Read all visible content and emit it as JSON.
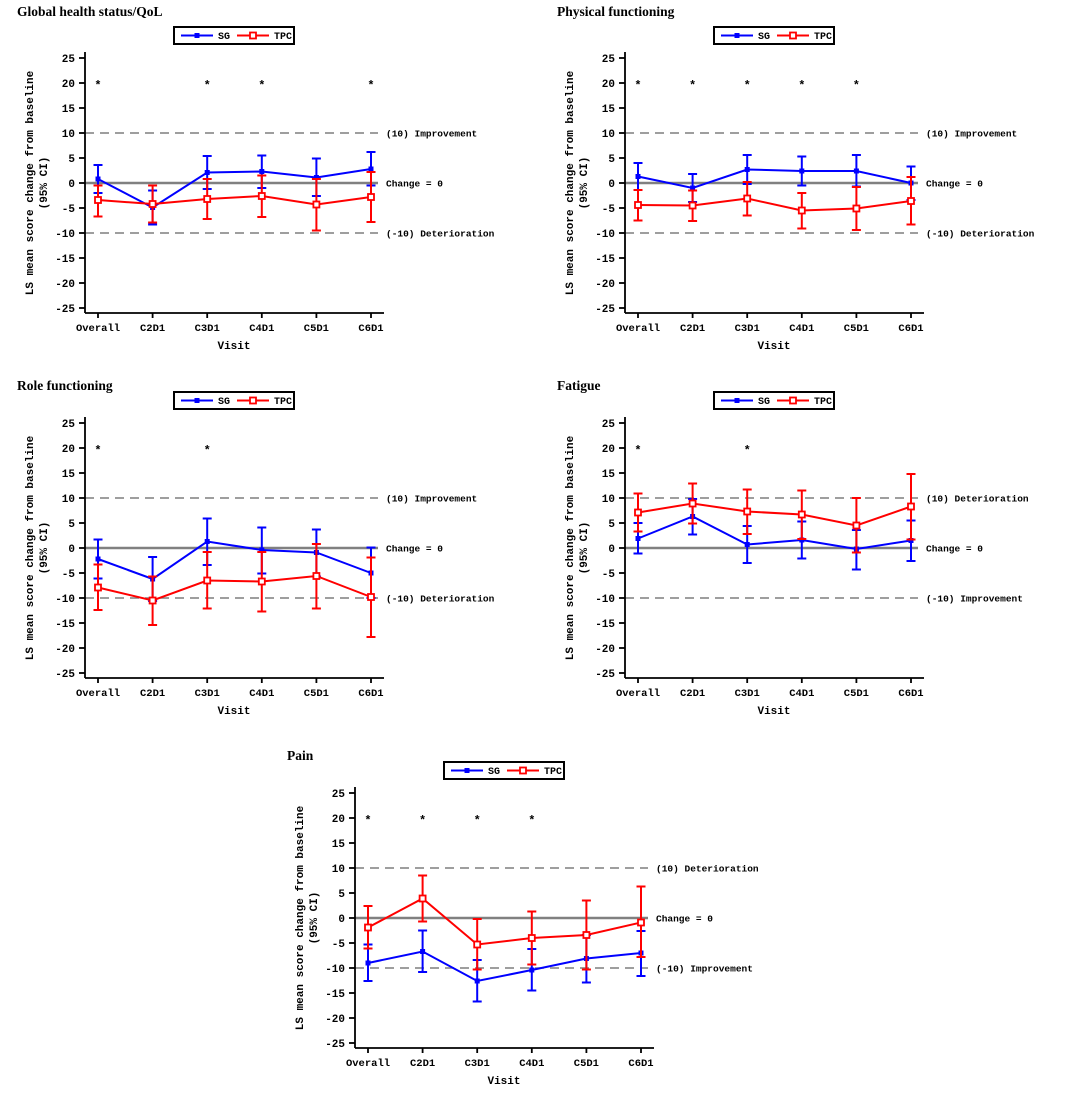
{
  "significance_marker": "*",
  "axes": {
    "ylabel_line1": "LS mean score change from baseline",
    "ylabel_line2": "(95% CI)",
    "xlabel": "Visit",
    "ylim": [
      -25,
      25
    ],
    "yticks": [
      25,
      20,
      15,
      10,
      5,
      0,
      -5,
      -10,
      -15,
      -20,
      -25
    ],
    "categories": [
      "Overall",
      "C2D1",
      "C3D1",
      "C4D1",
      "C5D1",
      "C6D1"
    ],
    "legend_position": "top-center",
    "grid": false
  },
  "colors": {
    "sg": "#0000FF",
    "tpc": "#FF0000",
    "zero_line": "#808080",
    "reference_line": "#7F7F7F",
    "text": "#000000",
    "background": "#FFFFFF"
  },
  "chart_data": [
    {
      "type": "line",
      "title": "Global health status/QoL",
      "xlabel": "Visit",
      "ylabel": "LS mean score change from baseline (95% CI)",
      "ylim": [
        -25,
        25
      ],
      "yticks": [
        25,
        20,
        15,
        10,
        5,
        0,
        -5,
        -10,
        -15,
        -20,
        -25
      ],
      "categories": [
        "Overall",
        "C2D1",
        "C3D1",
        "C4D1",
        "C5D1",
        "C6D1"
      ],
      "reference_lines": [
        {
          "value": 10,
          "style": "dashed",
          "label": "(10) Improvement"
        },
        {
          "value": 0,
          "style": "solid",
          "label": "Change = 0"
        },
        {
          "value": -10,
          "style": "dashed",
          "label": "(-10) Deterioration"
        }
      ],
      "asterisk_y": 20,
      "asterisk_categories": [
        "Overall",
        "C3D1",
        "C4D1",
        "C6D1"
      ],
      "series": [
        {
          "name": "SG",
          "color": "#0000FF",
          "marker": "filled-square",
          "values": [
            0.8,
            -4.9,
            2.1,
            2.3,
            1.1,
            2.8
          ],
          "ci_low": [
            -2.0,
            -8.3,
            -1.2,
            -1.0,
            -2.6,
            -0.5
          ],
          "ci_high": [
            3.6,
            -1.5,
            5.4,
            5.5,
            4.9,
            6.2
          ]
        },
        {
          "name": "TPC",
          "color": "#FF0000",
          "marker": "open-square",
          "values": [
            -3.4,
            -4.2,
            -3.2,
            -2.6,
            -4.3,
            -2.8
          ],
          "ci_low": [
            -6.7,
            -7.9,
            -7.2,
            -6.8,
            -9.5,
            -7.8
          ],
          "ci_high": [
            -0.5,
            -0.5,
            0.8,
            1.5,
            0.8,
            2.2
          ]
        }
      ]
    },
    {
      "type": "line",
      "title": "Physical functioning",
      "xlabel": "Visit",
      "ylabel": "LS mean score change from baseline (95% CI)",
      "ylim": [
        -25,
        25
      ],
      "yticks": [
        25,
        20,
        15,
        10,
        5,
        0,
        -5,
        -10,
        -15,
        -20,
        -25
      ],
      "categories": [
        "Overall",
        "C2D1",
        "C3D1",
        "C4D1",
        "C5D1",
        "C6D1"
      ],
      "reference_lines": [
        {
          "value": 10,
          "style": "dashed",
          "label": "(10) Improvement"
        },
        {
          "value": 0,
          "style": "solid",
          "label": "Change = 0"
        },
        {
          "value": -10,
          "style": "dashed",
          "label": "(-10) Deterioration"
        }
      ],
      "asterisk_y": 20,
      "asterisk_categories": [
        "Overall",
        "C2D1",
        "C3D1",
        "C4D1",
        "C5D1"
      ],
      "series": [
        {
          "name": "SG",
          "color": "#0000FF",
          "marker": "filled-square",
          "values": [
            1.3,
            -1.0,
            2.7,
            2.4,
            2.4,
            0.0
          ],
          "ci_low": [
            -1.4,
            -3.8,
            -0.2,
            -0.5,
            -0.7,
            -3.4
          ],
          "ci_high": [
            4.0,
            1.8,
            5.6,
            5.3,
            5.6,
            3.3
          ]
        },
        {
          "name": "TPC",
          "color": "#FF0000",
          "marker": "open-square",
          "values": [
            -4.4,
            -4.5,
            -3.1,
            -5.5,
            -5.1,
            -3.6
          ],
          "ci_low": [
            -7.5,
            -7.6,
            -6.5,
            -9.1,
            -9.4,
            -8.3
          ],
          "ci_high": [
            -1.4,
            -1.5,
            0.2,
            -2.0,
            -0.8,
            1.2
          ]
        }
      ]
    },
    {
      "type": "line",
      "title": "Role functioning",
      "xlabel": "Visit",
      "ylabel": "LS mean score change from baseline (95% CI)",
      "ylim": [
        -25,
        25
      ],
      "yticks": [
        25,
        20,
        15,
        10,
        5,
        0,
        -5,
        -10,
        -15,
        -20,
        -25
      ],
      "categories": [
        "Overall",
        "C2D1",
        "C3D1",
        "C4D1",
        "C5D1",
        "C6D1"
      ],
      "reference_lines": [
        {
          "value": 10,
          "style": "dashed",
          "label": "(10) Improvement"
        },
        {
          "value": 0,
          "style": "solid",
          "label": "Change = 0"
        },
        {
          "value": -10,
          "style": "dashed",
          "label": "(-10) Deterioration"
        }
      ],
      "asterisk_y": 20,
      "asterisk_categories": [
        "Overall",
        "C3D1"
      ],
      "series": [
        {
          "name": "SG",
          "color": "#0000FF",
          "marker": "filled-square",
          "values": [
            -2.2,
            -6.2,
            1.3,
            -0.4,
            -0.9,
            -5.0
          ],
          "ci_low": [
            -6.1,
            -10.6,
            -3.4,
            -5.1,
            -5.7,
            -10.0
          ],
          "ci_high": [
            1.7,
            -1.8,
            5.9,
            4.1,
            3.7,
            0.1
          ]
        },
        {
          "name": "TPC",
          "color": "#FF0000",
          "marker": "open-square",
          "values": [
            -7.9,
            -10.5,
            -6.5,
            -6.7,
            -5.6,
            -9.8
          ],
          "ci_low": [
            -12.4,
            -15.4,
            -12.1,
            -12.7,
            -12.1,
            -17.8
          ],
          "ci_high": [
            -3.3,
            -5.7,
            -0.8,
            -0.8,
            0.8,
            -1.9
          ]
        }
      ]
    },
    {
      "type": "line",
      "title": "Fatigue",
      "xlabel": "Visit",
      "ylabel": "LS mean score change from baseline (95% CI)",
      "ylim": [
        -25,
        25
      ],
      "yticks": [
        25,
        20,
        15,
        10,
        5,
        0,
        -5,
        -10,
        -15,
        -20,
        -25
      ],
      "categories": [
        "Overall",
        "C2D1",
        "C3D1",
        "C4D1",
        "C5D1",
        "C6D1"
      ],
      "reference_lines": [
        {
          "value": 10,
          "style": "dashed",
          "label": "(10) Deterioration"
        },
        {
          "value": 0,
          "style": "solid",
          "label": "Change = 0"
        },
        {
          "value": -10,
          "style": "dashed",
          "label": "(-10) Improvement"
        }
      ],
      "asterisk_y": 20,
      "asterisk_categories": [
        "Overall",
        "C3D1"
      ],
      "series": [
        {
          "name": "SG",
          "color": "#0000FF",
          "marker": "filled-square",
          "values": [
            1.9,
            6.3,
            0.7,
            1.6,
            -0.2,
            1.5
          ],
          "ci_low": [
            -1.1,
            2.7,
            -3.0,
            -2.1,
            -4.3,
            -2.6
          ],
          "ci_high": [
            5.0,
            9.8,
            4.4,
            5.3,
            3.6,
            5.5
          ]
        },
        {
          "name": "TPC",
          "color": "#FF0000",
          "marker": "open-square",
          "values": [
            7.1,
            8.9,
            7.3,
            6.7,
            4.5,
            8.3
          ],
          "ci_low": [
            3.3,
            4.9,
            2.8,
            1.8,
            -0.9,
            1.7
          ],
          "ci_high": [
            10.9,
            12.9,
            11.7,
            11.5,
            10.0,
            14.8
          ]
        }
      ]
    },
    {
      "type": "line",
      "title": "Pain",
      "xlabel": "Visit",
      "ylabel": "LS mean score change from baseline (95% CI)",
      "ylim": [
        -25,
        25
      ],
      "yticks": [
        25,
        20,
        15,
        10,
        5,
        0,
        -5,
        -10,
        -15,
        -20,
        -25
      ],
      "categories": [
        "Overall",
        "C2D1",
        "C3D1",
        "C4D1",
        "C5D1",
        "C6D1"
      ],
      "reference_lines": [
        {
          "value": 10,
          "style": "dashed",
          "label": "(10) Deterioration"
        },
        {
          "value": 0,
          "style": "solid",
          "label": "Change = 0"
        },
        {
          "value": -10,
          "style": "dashed",
          "label": "(-10) Improvement"
        }
      ],
      "asterisk_y": 20,
      "asterisk_categories": [
        "Overall",
        "C2D1",
        "C3D1",
        "C4D1"
      ],
      "series": [
        {
          "name": "SG",
          "color": "#0000FF",
          "marker": "filled-square",
          "values": [
            -9.0,
            -6.7,
            -12.6,
            -10.4,
            -8.1,
            -7.0
          ],
          "ci_low": [
            -12.6,
            -10.8,
            -16.7,
            -14.5,
            -12.9,
            -11.6
          ],
          "ci_high": [
            -5.3,
            -2.5,
            -8.4,
            -6.2,
            -3.4,
            -2.6
          ]
        },
        {
          "name": "TPC",
          "color": "#FF0000",
          "marker": "open-square",
          "values": [
            -1.9,
            3.9,
            -5.3,
            -4.0,
            -3.4,
            -0.9
          ],
          "ci_low": [
            -6.1,
            -0.7,
            -10.3,
            -9.3,
            -10.3,
            -7.8
          ],
          "ci_high": [
            2.4,
            8.5,
            -0.2,
            1.3,
            3.5,
            6.3
          ]
        }
      ]
    }
  ]
}
